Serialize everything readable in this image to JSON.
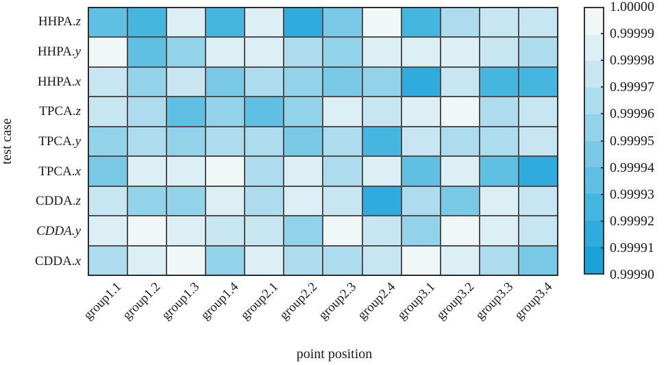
{
  "figure": {
    "background": "#ffffff",
    "grid_line_color": "#4d4d4d",
    "frame_color": "#2b2b2b"
  },
  "chart_data": {
    "type": "heatmap",
    "title": "",
    "xlabel": "point position",
    "ylabel": "test case",
    "x_categories": [
      "group1.1",
      "group1.2",
      "group1.3",
      "group1.4",
      "group2.1",
      "group2.2",
      "group2.3",
      "group2.4",
      "group3.1",
      "group3.2",
      "group3.3",
      "group3.4"
    ],
    "y_categories": [
      "HHPA.z",
      "HHPA.y",
      "HHPA.x",
      "TPCA.z",
      "TPCA.y",
      "TPCA.x",
      "CDDA.z",
      "CDDA.y",
      "CDDA.x"
    ],
    "y_label_parts": [
      {
        "prefix": "HHPA.",
        "suffix": "z",
        "italic": false
      },
      {
        "prefix": "HHPA.",
        "suffix": "y",
        "italic": false
      },
      {
        "prefix": "HHPA.",
        "suffix": "x",
        "italic": false
      },
      {
        "prefix": "TPCA.",
        "suffix": "z",
        "italic": false
      },
      {
        "prefix": "TPCA.",
        "suffix": "y",
        "italic": false
      },
      {
        "prefix": "TPCA.",
        "suffix": "x",
        "italic": false
      },
      {
        "prefix": "CDDA.",
        "suffix": "z",
        "italic": false
      },
      {
        "prefix": "CDDA.",
        "suffix": "y",
        "italic": true
      },
      {
        "prefix": "CDDA.",
        "suffix": "x",
        "italic": false
      }
    ],
    "values": [
      [
        0.999935,
        0.999925,
        0.999985,
        0.999925,
        0.999985,
        0.999915,
        0.999945,
        0.999995,
        0.999925,
        0.999965,
        0.999975,
        0.999975
      ],
      [
        0.999995,
        0.999935,
        0.999955,
        0.999985,
        0.999985,
        0.999965,
        0.999955,
        0.999985,
        0.999985,
        0.999985,
        0.999975,
        0.999965
      ],
      [
        0.999975,
        0.999955,
        0.999975,
        0.999945,
        0.999965,
        0.999955,
        0.999945,
        0.999955,
        0.999915,
        0.999975,
        0.999925,
        0.999925
      ],
      [
        0.999975,
        0.999965,
        0.999935,
        0.999955,
        0.999935,
        0.999955,
        0.999985,
        0.999975,
        0.999985,
        0.999995,
        0.999965,
        0.999975
      ],
      [
        0.999955,
        0.999965,
        0.999955,
        0.999965,
        0.999965,
        0.999945,
        0.999965,
        0.999925,
        0.999975,
        0.999965,
        0.999965,
        0.999975
      ],
      [
        0.999945,
        0.999985,
        0.999985,
        0.999995,
        0.999965,
        0.999985,
        0.999965,
        0.999985,
        0.999935,
        0.999985,
        0.999935,
        0.999915
      ],
      [
        0.999975,
        0.999955,
        0.999955,
        0.999985,
        0.999965,
        0.999985,
        0.999975,
        0.999915,
        0.999965,
        0.999945,
        0.999985,
        0.999975
      ],
      [
        0.999985,
        0.999995,
        0.999985,
        0.999975,
        0.999975,
        0.999955,
        0.999995,
        0.999975,
        0.999955,
        0.999995,
        0.999985,
        0.999975
      ],
      [
        0.999965,
        0.999985,
        0.999995,
        0.999955,
        0.999985,
        0.999965,
        0.999965,
        0.999975,
        0.999995,
        0.999985,
        0.999965,
        0.999945
      ]
    ],
    "colorbar": {
      "vmin": 0.9999,
      "vmax": 1.0,
      "tick_labels": [
        "1.00000",
        "0.99999",
        "0.99998",
        "0.99997",
        "0.99996",
        "0.99995",
        "0.99994",
        "0.99993",
        "0.99992",
        "0.99991",
        "0.99990"
      ],
      "palette_light_to_dark": [
        "#f0f7f7",
        "#dceff5",
        "#c7e6f1",
        "#addcee",
        "#93d3ea",
        "#79c9e6",
        "#5fc0e3",
        "#45b6df",
        "#2fabdd",
        "#1aa3d8"
      ]
    },
    "legend_position": "right",
    "grid": true
  }
}
